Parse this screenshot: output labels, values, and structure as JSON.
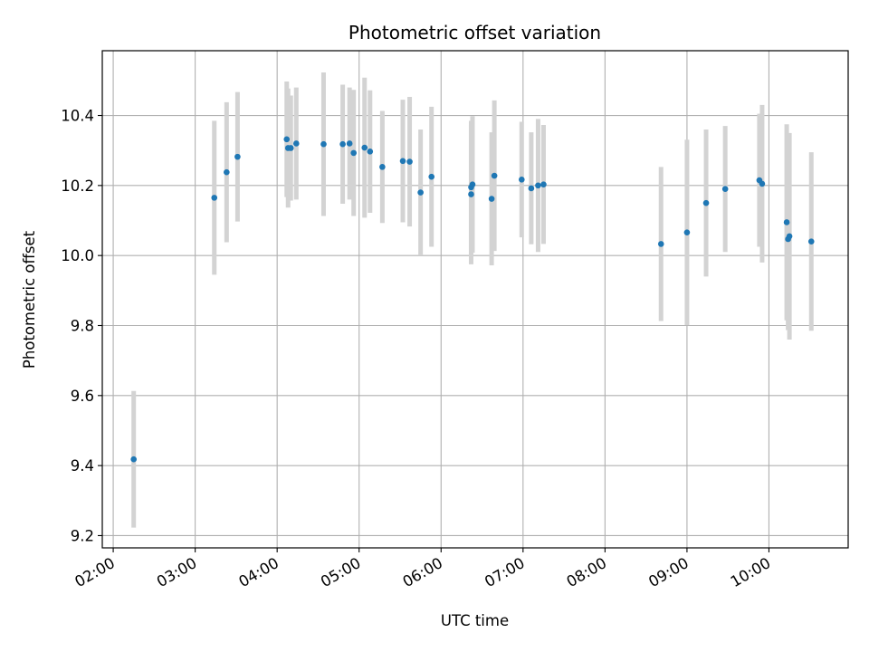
{
  "chart_data": {
    "type": "scatter",
    "title": "Photometric offset variation",
    "xlabel": "UTC time",
    "ylabel": "Photometric offset",
    "x_unit": "UTC time (HH:MM)",
    "xlim": [
      "01:52",
      "10:58"
    ],
    "ylim": [
      9.165,
      10.585
    ],
    "grid": true,
    "x_ticks": [
      "02:00",
      "03:00",
      "04:00",
      "05:00",
      "06:00",
      "07:00",
      "08:00",
      "09:00",
      "10:00"
    ],
    "y_ticks": [
      9.2,
      9.4,
      9.6,
      9.8,
      10.0,
      10.2,
      10.4
    ],
    "y_tick_labels": [
      "9.2",
      "9.4",
      "9.6",
      "9.8",
      "10.0",
      "10.2",
      "10.4"
    ],
    "series": [
      {
        "marker_color": "#1f77b4",
        "errorbar_color": "#d3d3d3",
        "points": [
          {
            "x": "02:15",
            "y": 9.418,
            "err": 0.195
          },
          {
            "x": "03:14",
            "y": 10.165,
            "err": 0.22
          },
          {
            "x": "03:23",
            "y": 10.238,
            "err": 0.2
          },
          {
            "x": "03:31",
            "y": 10.282,
            "err": 0.185
          },
          {
            "x": "04:07",
            "y": 10.332,
            "err": 0.165
          },
          {
            "x": "04:08",
            "y": 10.307,
            "err": 0.17
          },
          {
            "x": "04:10",
            "y": 10.307,
            "err": 0.15
          },
          {
            "x": "04:14",
            "y": 10.32,
            "err": 0.16
          },
          {
            "x": "04:34",
            "y": 10.318,
            "err": 0.205
          },
          {
            "x": "04:48",
            "y": 10.318,
            "err": 0.17
          },
          {
            "x": "04:53",
            "y": 10.32,
            "err": 0.16
          },
          {
            "x": "04:56",
            "y": 10.293,
            "err": 0.18
          },
          {
            "x": "05:04",
            "y": 10.308,
            "err": 0.2
          },
          {
            "x": "05:08",
            "y": 10.297,
            "err": 0.175
          },
          {
            "x": "05:17",
            "y": 10.253,
            "err": 0.16
          },
          {
            "x": "05:32",
            "y": 10.27,
            "err": 0.175
          },
          {
            "x": "05:37",
            "y": 10.268,
            "err": 0.185
          },
          {
            "x": "05:45",
            "y": 10.18,
            "err": 0.18
          },
          {
            "x": "05:53",
            "y": 10.225,
            "err": 0.2
          },
          {
            "x": "06:22",
            "y": 10.175,
            "err": 0.2
          },
          {
            "x": "06:22",
            "y": 10.195,
            "err": 0.19
          },
          {
            "x": "06:23",
            "y": 10.203,
            "err": 0.195
          },
          {
            "x": "06:37",
            "y": 10.162,
            "err": 0.19
          },
          {
            "x": "06:39",
            "y": 10.228,
            "err": 0.215
          },
          {
            "x": "06:59",
            "y": 10.217,
            "err": 0.165
          },
          {
            "x": "07:06",
            "y": 10.192,
            "err": 0.16
          },
          {
            "x": "07:11",
            "y": 10.2,
            "err": 0.19
          },
          {
            "x": "07:15",
            "y": 10.203,
            "err": 0.17
          },
          {
            "x": "08:41",
            "y": 10.033,
            "err": 0.22
          },
          {
            "x": "09:00",
            "y": 10.066,
            "err": 0.265
          },
          {
            "x": "09:14",
            "y": 10.15,
            "err": 0.21
          },
          {
            "x": "09:28",
            "y": 10.19,
            "err": 0.18
          },
          {
            "x": "09:53",
            "y": 10.215,
            "err": 0.19
          },
          {
            "x": "09:55",
            "y": 10.205,
            "err": 0.225
          },
          {
            "x": "10:13",
            "y": 10.095,
            "err": 0.28
          },
          {
            "x": "10:14",
            "y": 10.047,
            "err": 0.26
          },
          {
            "x": "10:15",
            "y": 10.055,
            "err": 0.295
          },
          {
            "x": "10:31",
            "y": 10.04,
            "err": 0.255
          }
        ]
      }
    ]
  }
}
